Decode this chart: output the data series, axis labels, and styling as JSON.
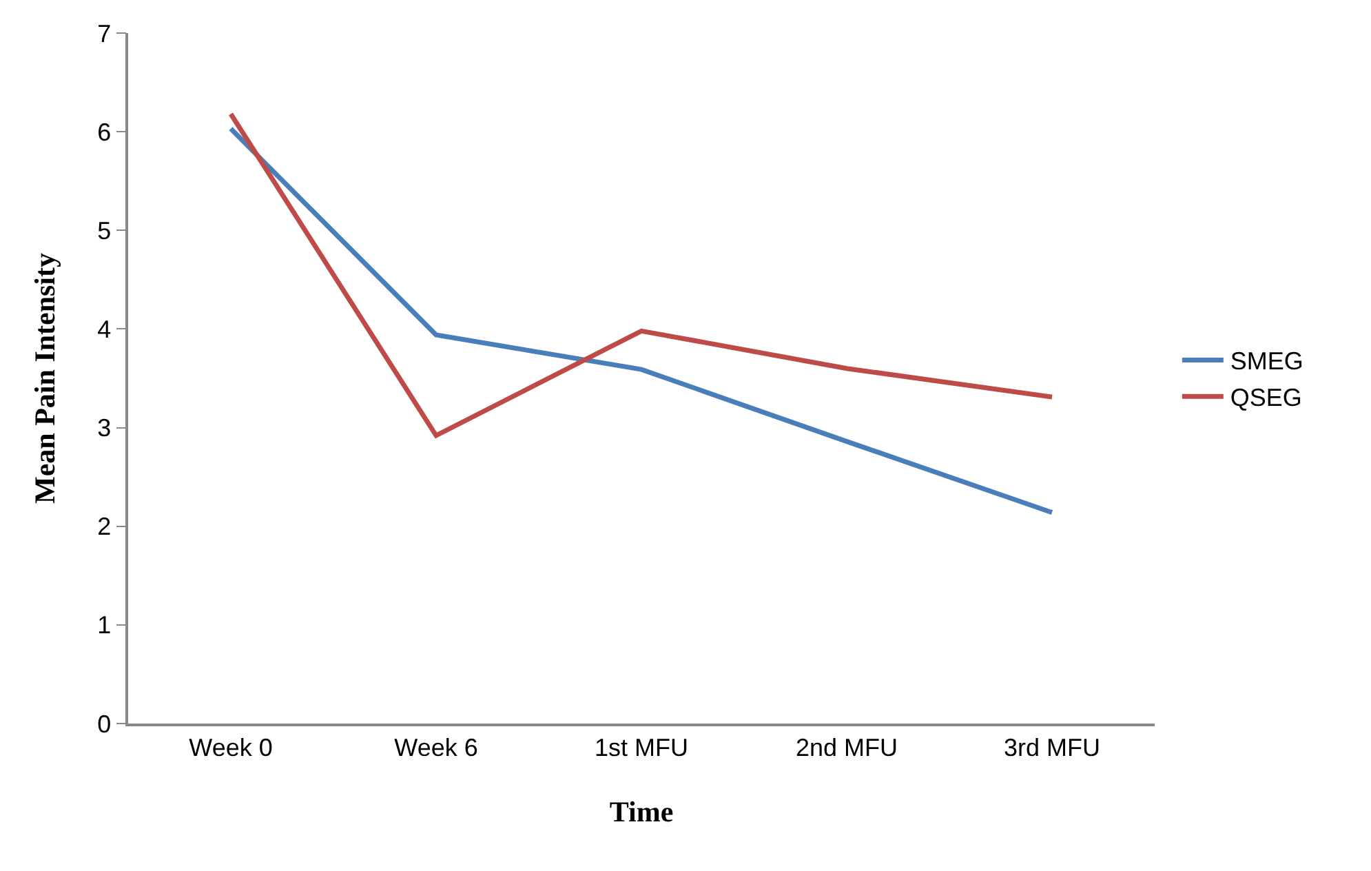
{
  "chart_data": {
    "type": "line",
    "xlabel": "Time",
    "ylabel": "Mean Pain Intensity",
    "categories": [
      "Week 0",
      "Week 6",
      "1st MFU",
      "2nd MFU",
      "3rd MFU"
    ],
    "series": [
      {
        "name": "SMEG",
        "color": "#4a7ebb",
        "values": [
          6.03,
          3.94,
          3.59,
          2.86,
          2.14
        ]
      },
      {
        "name": "QSEG",
        "color": "#be4b48",
        "values": [
          6.18,
          2.92,
          3.98,
          3.6,
          3.31
        ]
      }
    ],
    "ylim": [
      0,
      7
    ],
    "yticks": [
      0,
      1,
      2,
      3,
      4,
      5,
      6,
      7
    ],
    "grid": false,
    "legend": "right",
    "marker": "none",
    "line_style": "solid"
  }
}
